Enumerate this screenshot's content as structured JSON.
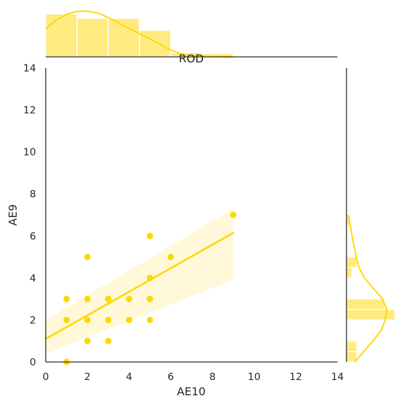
{
  "chart_data": {
    "type": "scatter",
    "title": "ROD",
    "xlabel": "AE10",
    "ylabel": "AE9",
    "xlim": [
      0,
      14
    ],
    "ylim": [
      0,
      14
    ],
    "xticks": [
      "0",
      "2",
      "4",
      "6",
      "8",
      "10",
      "12",
      "14"
    ],
    "yticks": [
      "0",
      "2",
      "4",
      "6",
      "8",
      "10",
      "12",
      "14"
    ],
    "grid": false,
    "color": "#FFD700",
    "points": [
      {
        "x": 1,
        "y": 0
      },
      {
        "x": 1,
        "y": 2
      },
      {
        "x": 1,
        "y": 3
      },
      {
        "x": 2,
        "y": 1
      },
      {
        "x": 2,
        "y": 2
      },
      {
        "x": 2,
        "y": 3
      },
      {
        "x": 2,
        "y": 5
      },
      {
        "x": 3,
        "y": 1
      },
      {
        "x": 3,
        "y": 2
      },
      {
        "x": 3,
        "y": 3
      },
      {
        "x": 4,
        "y": 2
      },
      {
        "x": 4,
        "y": 3
      },
      {
        "x": 5,
        "y": 2
      },
      {
        "x": 5,
        "y": 3
      },
      {
        "x": 5,
        "y": 4
      },
      {
        "x": 5,
        "y": 6
      },
      {
        "x": 6,
        "y": 5
      },
      {
        "x": 9,
        "y": 7
      }
    ],
    "regression": {
      "x": [
        0,
        9
      ],
      "y": [
        1.1,
        6.15
      ],
      "ci_lower": [
        0.4,
        3.9
      ],
      "ci_upper": [
        2.0,
        7.3
      ]
    },
    "marginal_x": {
      "bin_edges": [
        0,
        1.5,
        3,
        4.5,
        6,
        7.5,
        9
      ],
      "counts": [
        5,
        4.5,
        4.5,
        3.1,
        0.5,
        0.4
      ],
      "kde_x": [
        0,
        0.5,
        1,
        1.5,
        2,
        2.5,
        3,
        3.5,
        4,
        4.5,
        5,
        5.5,
        6,
        6.5,
        7,
        7.5,
        8,
        8.5,
        9
      ],
      "kde_y": [
        3.3,
        4.3,
        4.95,
        5.3,
        5.35,
        5.1,
        4.6,
        3.95,
        3.3,
        2.7,
        2.1,
        1.45,
        0.8,
        0.35,
        0.12,
        0.06,
        0.03,
        0.01,
        0
      ]
    },
    "marginal_y": {
      "bin_edges": [
        0,
        0.5,
        1,
        2,
        2.5,
        3,
        4,
        4.5,
        5,
        6.5,
        7
      ],
      "counts": [
        1.5,
        1.5,
        0,
        7,
        5.5,
        0,
        0.8,
        1.5,
        0,
        0.5
      ],
      "kde_y": [
        0,
        0.5,
        1,
        1.5,
        2,
        2.5,
        3,
        3.5,
        4,
        4.5,
        5,
        5.5,
        6,
        6.5,
        7
      ],
      "kde_x": [
        1.2,
        2.5,
        3.8,
        5,
        5.6,
        5.8,
        5.2,
        3.9,
        2.6,
        1.8,
        1.4,
        1.1,
        0.8,
        0.55,
        0.3
      ]
    }
  }
}
